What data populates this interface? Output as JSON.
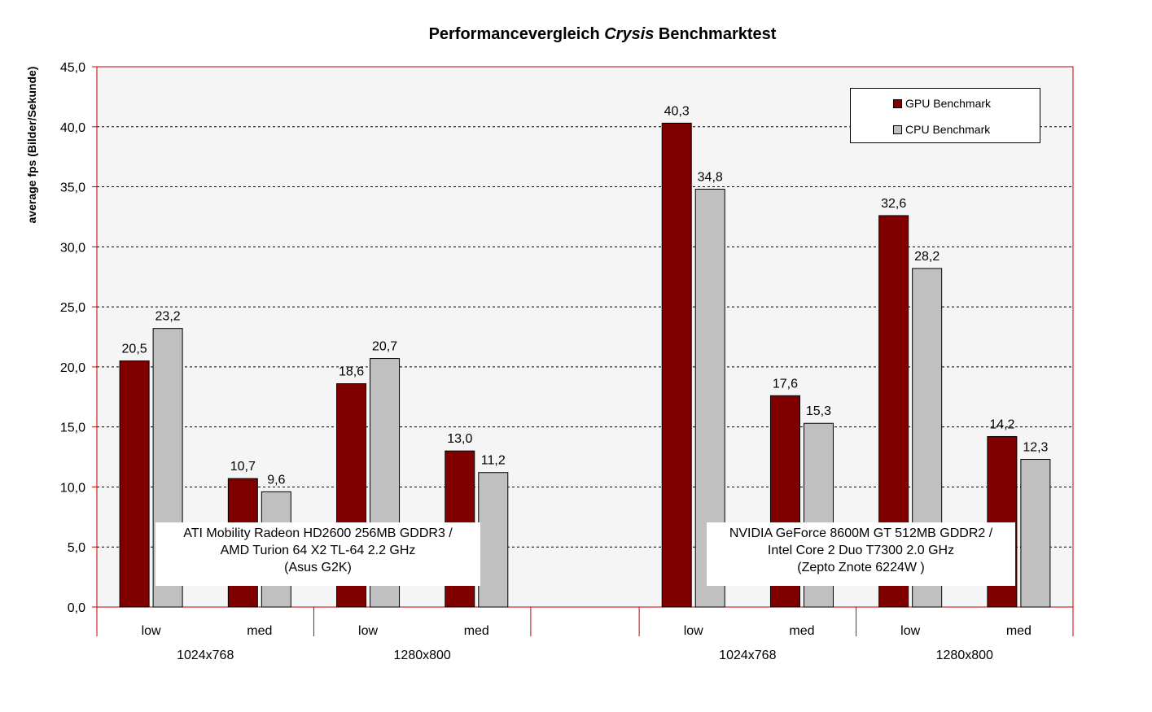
{
  "title_prefix": "Performancevergleich ",
  "title_italic": "Crysis",
  "title_suffix": " Benchmarktest",
  "chart_data": {
    "type": "bar",
    "title": "Performancevergleich Crysis Benchmarktest",
    "ylabel": "average fps (Bilder/Sekunde)",
    "ylim": [
      0,
      45
    ],
    "yticks": [
      "0,0",
      "5,0",
      "10,0",
      "15,0",
      "20,0",
      "25,0",
      "30,0",
      "35,0",
      "40,0",
      "45,0"
    ],
    "grid": true,
    "legend_position": "top-right",
    "categories": [
      "low",
      "med",
      "low",
      "med",
      "",
      "low",
      "med",
      "low",
      "med"
    ],
    "resolution_labels": [
      "1024x768",
      "1280x800",
      "",
      "1024x768",
      "1280x800"
    ],
    "series": [
      {
        "name": "GPU Benchmark",
        "color": "#800000",
        "values": [
          20.5,
          10.7,
          18.6,
          13.0,
          null,
          40.3,
          17.6,
          32.6,
          14.2
        ],
        "labels": [
          "20,5",
          "10,7",
          "18,6",
          "13,0",
          "",
          "40,3",
          "17,6",
          "32,6",
          "14,2"
        ]
      },
      {
        "name": "CPU Benchmark",
        "color": "#c0c0c0",
        "values": [
          23.2,
          9.6,
          20.7,
          11.2,
          null,
          34.8,
          15.3,
          28.2,
          12.3
        ],
        "labels": [
          "23,2",
          "9,6",
          "20,7",
          "11,2",
          "",
          "34,8",
          "15,3",
          "28,2",
          "12,3"
        ]
      }
    ]
  },
  "annotations": [
    {
      "lines": [
        "ATI Mobility Radeon HD2600 256MB GDDR3 /",
        "AMD Turion 64 X2 TL-64 2.2 GHz",
        "(Asus G2K)"
      ]
    },
    {
      "lines": [
        "NVIDIA GeForce 8600M GT 512MB GDDR2 /",
        "Intel Core 2 Duo T7300 2.0 GHz",
        "(Zepto Znote 6224W )"
      ]
    }
  ],
  "colors": {
    "plot_border": "#cc0000",
    "plot_background": "#f5f5f5",
    "gpu": "#800000",
    "cpu": "#c0c0c0"
  }
}
